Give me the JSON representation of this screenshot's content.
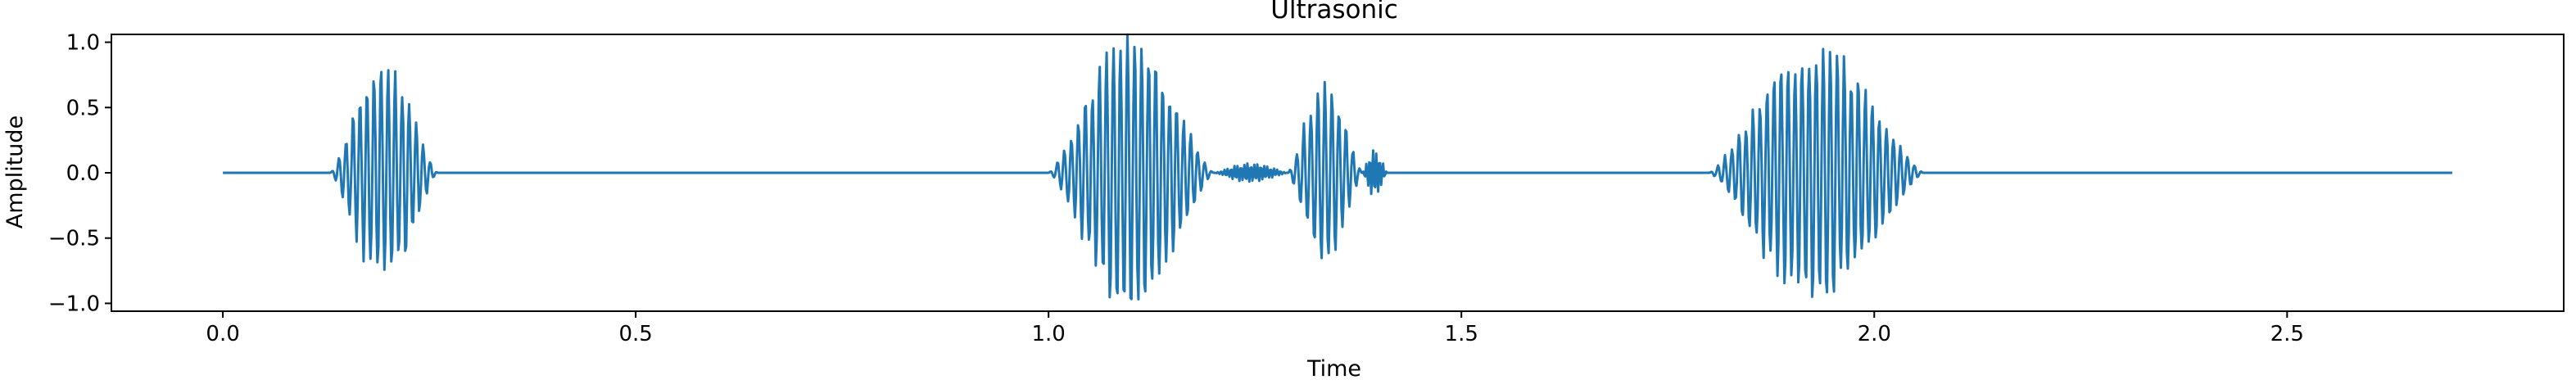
{
  "chart_data": {
    "type": "line",
    "title": "Ultrasonic",
    "xlabel": "Time",
    "ylabel": "Amplitude",
    "xlim": [
      -0.135,
      2.835
    ],
    "ylim": [
      -1.06,
      1.06
    ],
    "grid": false,
    "legend": "none",
    "x_ticks": [
      0.0,
      0.5,
      1.0,
      1.5,
      2.0,
      2.5
    ],
    "x_tick_labels": [
      "0.0",
      "0.5",
      "1.0",
      "1.5",
      "2.0",
      "2.5"
    ],
    "y_ticks": [
      -1.0,
      -0.5,
      0.0,
      0.5,
      1.0
    ],
    "y_tick_labels": [
      "−1.0",
      "−0.5",
      "0.0",
      "0.5",
      "1.0"
    ],
    "colors": {
      "series": "#1f77b4",
      "axes": "#000000",
      "background": "#ffffff"
    },
    "series": [
      {
        "name": "Ultrasonic",
        "x_start": 0.0,
        "x_end": 2.7,
        "bursts": [
          {
            "start": 0.13,
            "end": 0.26,
            "peak": 0.77,
            "period": 0.0085
          },
          {
            "start": 1.0,
            "end": 1.2,
            "peak": 0.98,
            "period": 0.0085
          },
          {
            "start": 1.2,
            "end": 1.29,
            "peak": 0.07,
            "period": 0.004
          },
          {
            "start": 1.29,
            "end": 1.38,
            "peak": 0.65,
            "period": 0.0085
          },
          {
            "start": 1.38,
            "end": 1.41,
            "peak": 0.18,
            "period": 0.004
          },
          {
            "start": 1.8,
            "end": 2.06,
            "peak": 0.92,
            "period": 0.0085
          }
        ]
      }
    ]
  }
}
